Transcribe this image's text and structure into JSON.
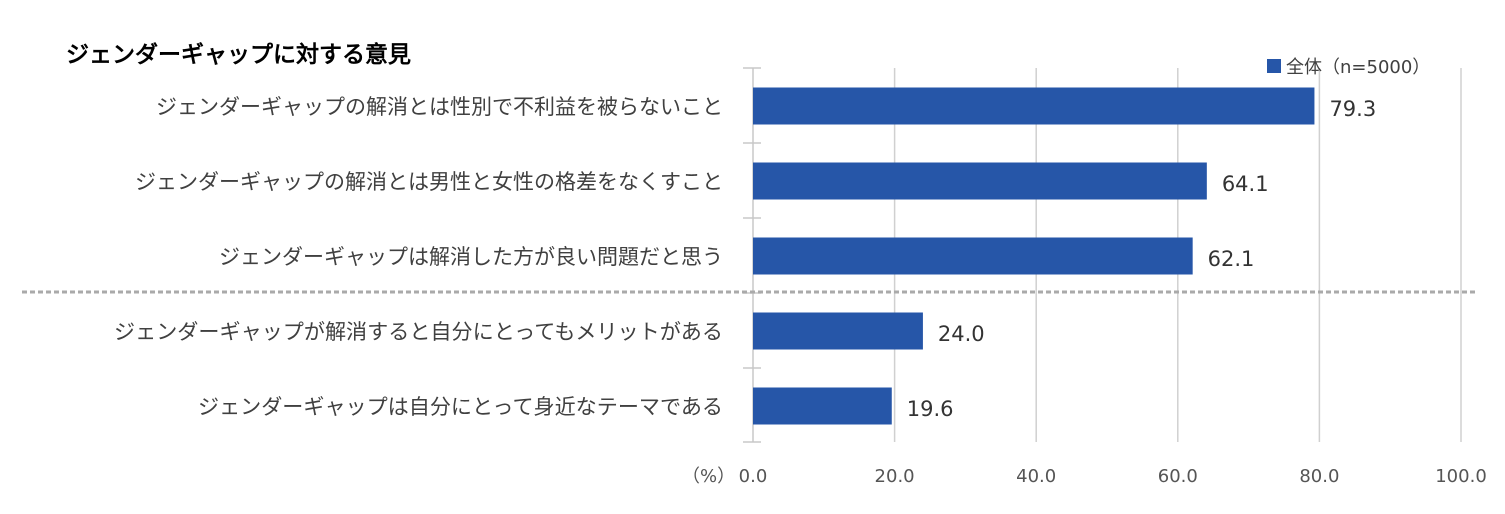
{
  "chart_data": {
    "type": "bar",
    "orientation": "horizontal",
    "title": "ジェンダーギャップに対する意見",
    "categories": [
      "ジェンダーギャップの解消とは性別で不利益を被らないこと",
      "ジェンダーギャップの解消とは男性と女性の格差をなくすこと",
      "ジェンダーギャップは解消した方が良い問題だと思う",
      "ジェンダーギャップが解消すると自分にとってもメリットがある",
      "ジェンダーギャップは自分にとって身近なテーマである"
    ],
    "series": [
      {
        "name": "全体（n=5000）",
        "values": [
          79.3,
          64.1,
          62.1,
          24.0,
          19.6
        ],
        "color": "#2656a8"
      }
    ],
    "value_labels": [
      "79.3",
      "64.1",
      "62.1",
      "24.0",
      "19.6"
    ],
    "xlim": [
      0,
      100
    ],
    "x_ticks": [
      "0.0",
      "20.0",
      "40.0",
      "60.0",
      "80.0",
      "100.0"
    ],
    "xlabel": "（%）",
    "ylabel": "",
    "grid": true,
    "legend_position": "top-right",
    "separator_after_category": 3
  }
}
